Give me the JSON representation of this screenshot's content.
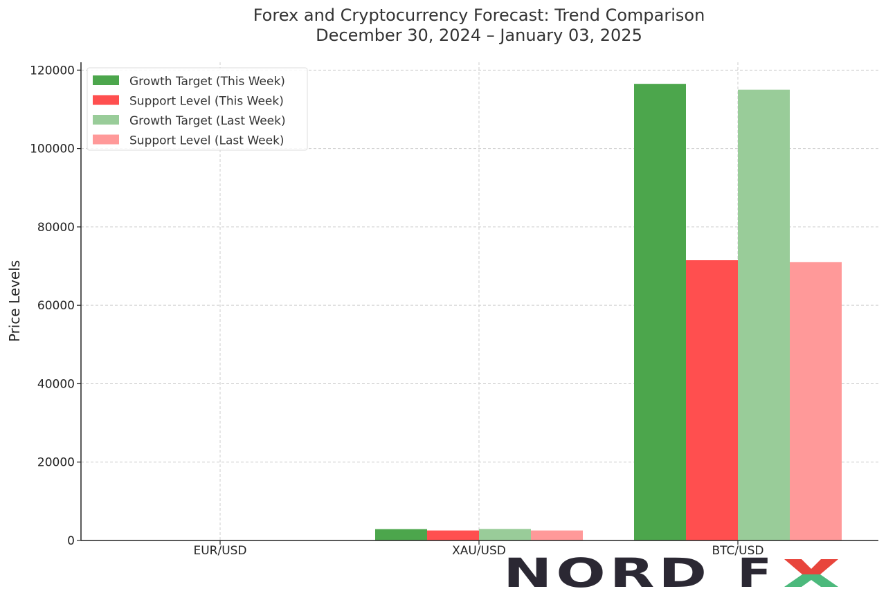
{
  "chart_data": {
    "type": "bar",
    "title": "Forex and Cryptocurrency Forecast: Trend Comparison",
    "subtitle": "December 30, 2024 – January 03, 2025",
    "xlabel": "",
    "ylabel": "Price Levels",
    "categories": [
      "EUR/USD",
      "XAU/USD",
      "BTC/USD"
    ],
    "series": [
      {
        "name": "Growth Target (This Week)",
        "color": "#4ca64c",
        "values": [
          1.05,
          2900,
          116500
        ]
      },
      {
        "name": "Support Level (This Week)",
        "color": "#ff4f4f",
        "values": [
          1.03,
          2550,
          71500
        ]
      },
      {
        "name": "Growth Target (Last Week)",
        "color": "#99cc99",
        "values": [
          1.06,
          2950,
          115000
        ]
      },
      {
        "name": "Support Level (Last Week)",
        "color": "#ff9999",
        "values": [
          1.03,
          2550,
          71000
        ]
      }
    ],
    "ylim": [
      0,
      122000
    ],
    "yticks": [
      0,
      20000,
      40000,
      60000,
      80000,
      100000,
      120000
    ],
    "ytick_labels": [
      "0",
      "20000",
      "40000",
      "60000",
      "80000",
      "100000",
      "120000"
    ],
    "grid": true,
    "legend_position": "top-left"
  },
  "logo": {
    "text": "NORD FX",
    "colors": {
      "dark": "#2b2833",
      "red": "#e8453c",
      "green": "#4cb97c"
    }
  }
}
